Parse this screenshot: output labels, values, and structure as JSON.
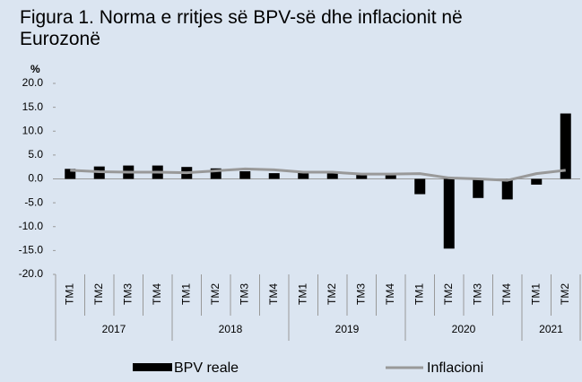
{
  "chart_data": {
    "type": "bar_line",
    "title": "Figura 1. Norma e rritjes së BPV-së dhe inflacionit në Eurozonë",
    "y_unit": "%",
    "category_groups": [
      {
        "name": "2017",
        "categories": [
          "TM1",
          "TM2",
          "TM3",
          "TM4"
        ]
      },
      {
        "name": "2018",
        "categories": [
          "TM1",
          "TM2",
          "TM3",
          "TM4"
        ]
      },
      {
        "name": "2019",
        "categories": [
          "TM1",
          "TM2",
          "TM3",
          "TM4"
        ]
      },
      {
        "name": "2020",
        "categories": [
          "TM1",
          "TM2",
          "TM3",
          "TM4"
        ]
      },
      {
        "name": "2021",
        "categories": [
          "TM1",
          "TM2"
        ]
      }
    ],
    "series": [
      {
        "name": "BPV reale",
        "type": "bar",
        "color": "#000000",
        "values": [
          2.1,
          2.6,
          2.8,
          2.8,
          2.5,
          2.2,
          1.6,
          1.2,
          1.5,
          1.3,
          1.0,
          1.0,
          -3.2,
          -14.6,
          -4.0,
          -4.3,
          -1.2,
          13.7
        ]
      },
      {
        "name": "Inflacioni",
        "type": "line",
        "color": "#999999",
        "values": [
          1.8,
          1.5,
          1.4,
          1.4,
          1.3,
          1.7,
          2.1,
          1.9,
          1.4,
          1.4,
          1.0,
          1.0,
          1.1,
          0.2,
          0.0,
          -0.3,
          1.1,
          1.8
        ]
      }
    ],
    "ylim": [
      -20,
      20
    ],
    "yticks": [
      {
        "value": -20,
        "label": "-20.0"
      },
      {
        "value": -15,
        "label": "-15.0"
      },
      {
        "value": -10,
        "label": "-10.0"
      },
      {
        "value": -5,
        "label": "-5.0"
      },
      {
        "value": 0,
        "label": "0.0"
      },
      {
        "value": 5,
        "label": "5.0"
      },
      {
        "value": 10,
        "label": "10.0"
      },
      {
        "value": 15,
        "label": "15.0"
      },
      {
        "value": 20,
        "label": "20.0"
      }
    ],
    "legend": "bottom"
  }
}
